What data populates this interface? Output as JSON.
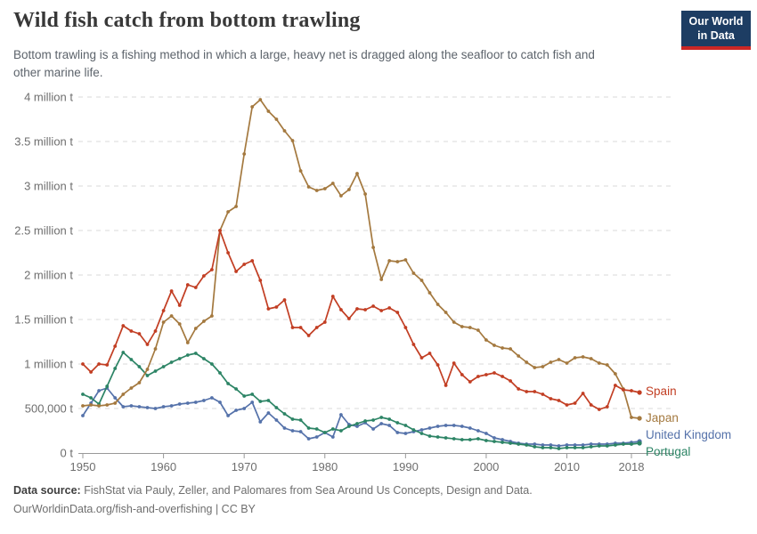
{
  "header": {
    "title": "Wild fish catch from bottom trawling",
    "subtitle_line1": "Bottom trawling is a fishing method in which a large, heavy net is dragged along the seafloor to catch fish and",
    "subtitle_line2": "other marine life.",
    "logo_line1": "Our World",
    "logo_line2": "in Data"
  },
  "footer": {
    "source_label": "Data source:",
    "source_text": " FishStat via Pauly, Zeller, and Palomares from Sea Around Us Concepts, Design and Data.",
    "link_line": "OurWorldinData.org/fish-and-overfishing | CC BY"
  },
  "colors": {
    "spain": "#C23E23",
    "japan": "#A4793F",
    "united_kingdom": "#5572AA",
    "portugal": "#2C8465",
    "axis": "#999999",
    "gridline": "#dadada",
    "tick_label": "#6e6e6e",
    "logo_navy": "#1d3d63",
    "logo_red": "#cb2725"
  },
  "chart_data": {
    "type": "line",
    "title": "Wild fish catch from bottom trawling",
    "unit_note": "series values are in million tonnes (t); markers shown at yearly data points",
    "grid": "horizontal dashed gridlines",
    "legend_position": "labels at right end of each line",
    "ylim_million_t": [
      0,
      4
    ],
    "y_ticks": [
      {
        "v": 0,
        "label": "0 t"
      },
      {
        "v": 0.5,
        "label": "500,000 t"
      },
      {
        "v": 1,
        "label": "1 million t"
      },
      {
        "v": 1.5,
        "label": "1.5 million t"
      },
      {
        "v": 2,
        "label": "2 million t"
      },
      {
        "v": 2.5,
        "label": "2.5 million t"
      },
      {
        "v": 3,
        "label": "3 million t"
      },
      {
        "v": 3.5,
        "label": "3.5 million t"
      },
      {
        "v": 4,
        "label": "4 million t"
      }
    ],
    "x_ticks": [
      1950,
      1960,
      1970,
      1980,
      1990,
      2000,
      2010,
      2018
    ],
    "years": [
      1950,
      1951,
      1952,
      1953,
      1954,
      1955,
      1956,
      1957,
      1958,
      1959,
      1960,
      1961,
      1962,
      1963,
      1964,
      1965,
      1966,
      1967,
      1968,
      1969,
      1970,
      1971,
      1972,
      1973,
      1974,
      1975,
      1976,
      1977,
      1978,
      1979,
      1980,
      1981,
      1982,
      1983,
      1984,
      1985,
      1986,
      1987,
      1988,
      1989,
      1990,
      1991,
      1992,
      1993,
      1994,
      1995,
      1996,
      1997,
      1998,
      1999,
      2000,
      2001,
      2002,
      2003,
      2004,
      2005,
      2006,
      2007,
      2008,
      2009,
      2010,
      2011,
      2012,
      2013,
      2014,
      2015,
      2016,
      2017,
      2018,
      2019
    ],
    "series": [
      {
        "name": "Spain",
        "color": "#C23E23",
        "values_million_t": [
          1.0,
          0.91,
          1.0,
          0.99,
          1.2,
          1.43,
          1.37,
          1.34,
          1.22,
          1.37,
          1.6,
          1.82,
          1.66,
          1.89,
          1.86,
          1.99,
          2.06,
          2.5,
          2.25,
          2.04,
          2.12,
          2.16,
          1.94,
          1.62,
          1.64,
          1.72,
          1.41,
          1.41,
          1.32,
          1.41,
          1.47,
          1.76,
          1.61,
          1.51,
          1.62,
          1.61,
          1.65,
          1.6,
          1.63,
          1.58,
          1.41,
          1.22,
          1.07,
          1.12,
          0.99,
          0.76,
          1.01,
          0.88,
          0.8,
          0.86,
          0.88,
          0.9,
          0.86,
          0.81,
          0.72,
          0.69,
          0.69,
          0.66,
          0.61,
          0.59,
          0.54,
          0.56,
          0.67,
          0.54,
          0.49,
          0.52,
          0.76,
          0.71,
          0.7,
          0.68
        ]
      },
      {
        "name": "Japan",
        "color": "#A4793F",
        "values_million_t": [
          0.53,
          0.54,
          0.53,
          0.54,
          0.56,
          0.66,
          0.73,
          0.79,
          0.94,
          1.17,
          1.47,
          1.54,
          1.45,
          1.24,
          1.4,
          1.48,
          1.54,
          2.5,
          2.71,
          2.77,
          3.36,
          3.89,
          3.97,
          3.84,
          3.75,
          3.62,
          3.51,
          3.17,
          2.99,
          2.95,
          2.97,
          3.03,
          2.89,
          2.96,
          3.14,
          2.91,
          2.31,
          1.95,
          2.16,
          2.15,
          2.17,
          2.02,
          1.94,
          1.8,
          1.67,
          1.58,
          1.47,
          1.42,
          1.41,
          1.38,
          1.27,
          1.21,
          1.18,
          1.17,
          1.09,
          1.02,
          0.96,
          0.97,
          1.02,
          1.05,
          1.01,
          1.07,
          1.08,
          1.06,
          1.01,
          0.99,
          0.89,
          0.72,
          0.4,
          0.39
        ]
      },
      {
        "name": "United Kingdom",
        "color": "#5572AA",
        "values_million_t": [
          0.42,
          0.56,
          0.7,
          0.73,
          0.62,
          0.52,
          0.53,
          0.52,
          0.51,
          0.5,
          0.52,
          0.53,
          0.55,
          0.56,
          0.57,
          0.59,
          0.62,
          0.57,
          0.42,
          0.48,
          0.5,
          0.57,
          0.35,
          0.45,
          0.37,
          0.28,
          0.25,
          0.24,
          0.16,
          0.18,
          0.23,
          0.18,
          0.43,
          0.32,
          0.3,
          0.34,
          0.27,
          0.33,
          0.31,
          0.23,
          0.22,
          0.24,
          0.26,
          0.28,
          0.3,
          0.31,
          0.31,
          0.3,
          0.28,
          0.25,
          0.22,
          0.17,
          0.15,
          0.13,
          0.11,
          0.1,
          0.1,
          0.09,
          0.09,
          0.08,
          0.09,
          0.09,
          0.09,
          0.1,
          0.1,
          0.1,
          0.11,
          0.11,
          0.12,
          0.13
        ]
      },
      {
        "name": "Portugal",
        "color": "#2C8465",
        "values_million_t": [
          0.66,
          0.62,
          0.55,
          0.75,
          0.95,
          1.13,
          1.05,
          0.97,
          0.87,
          0.92,
          0.97,
          1.02,
          1.06,
          1.1,
          1.12,
          1.06,
          1.0,
          0.9,
          0.78,
          0.72,
          0.64,
          0.66,
          0.58,
          0.59,
          0.51,
          0.44,
          0.38,
          0.37,
          0.28,
          0.27,
          0.23,
          0.27,
          0.25,
          0.3,
          0.33,
          0.36,
          0.37,
          0.4,
          0.38,
          0.34,
          0.31,
          0.26,
          0.22,
          0.19,
          0.18,
          0.17,
          0.16,
          0.15,
          0.15,
          0.16,
          0.14,
          0.13,
          0.12,
          0.11,
          0.1,
          0.09,
          0.07,
          0.06,
          0.06,
          0.05,
          0.06,
          0.06,
          0.06,
          0.07,
          0.08,
          0.08,
          0.09,
          0.1,
          0.1,
          0.11
        ]
      }
    ]
  }
}
